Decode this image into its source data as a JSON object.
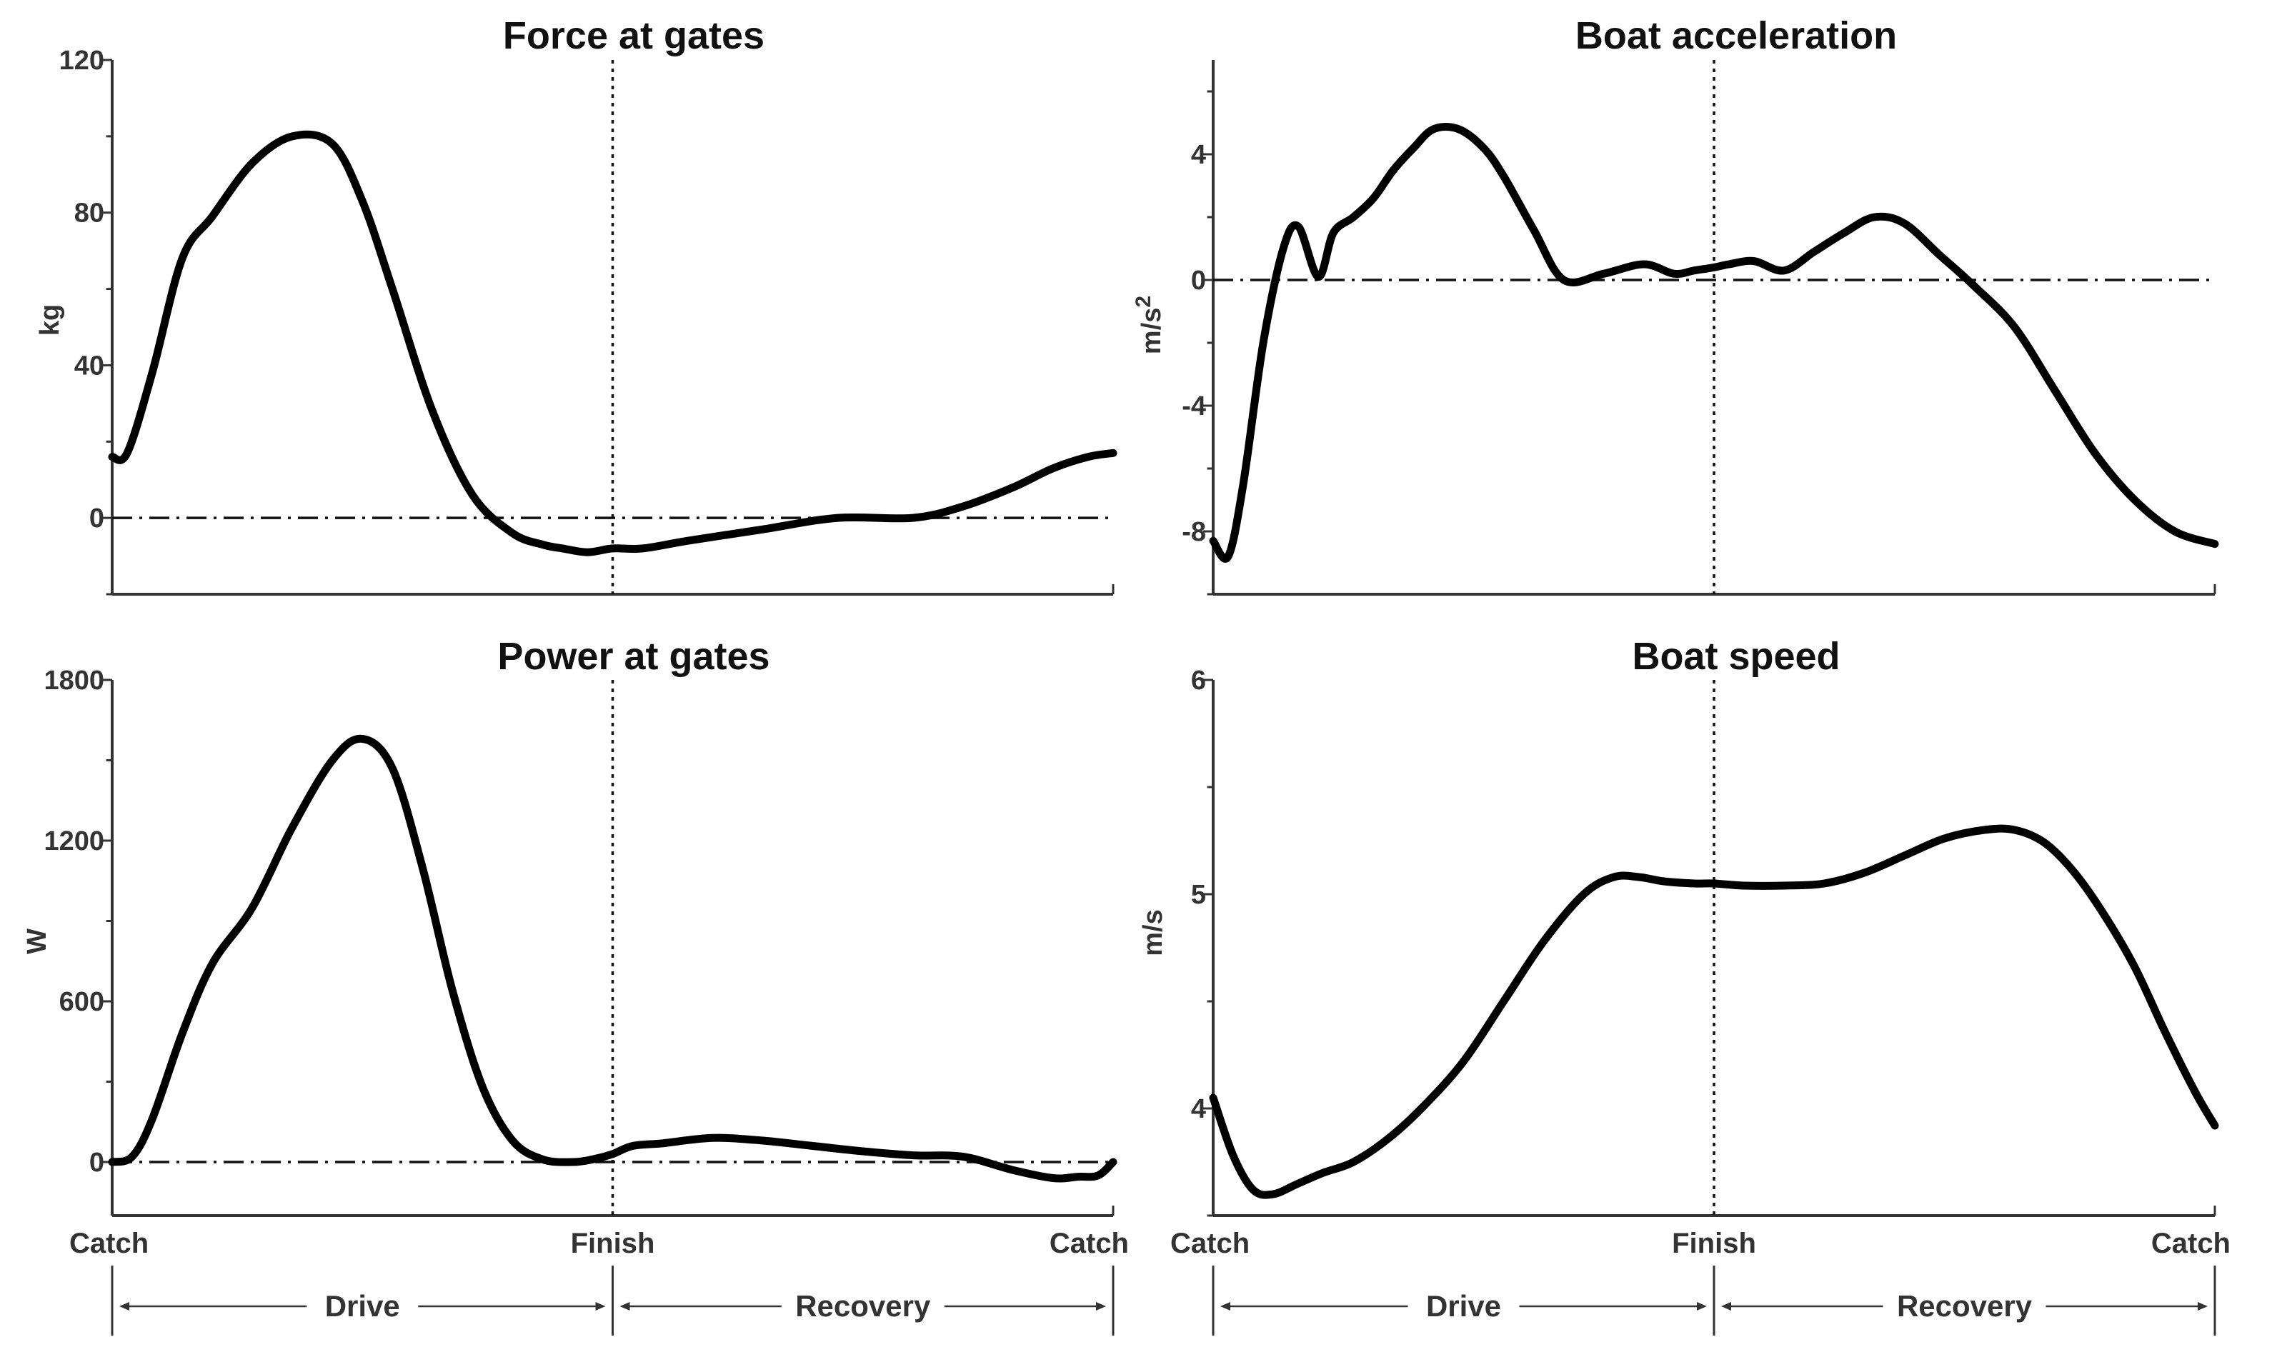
{
  "chart_data": [
    {
      "type": "line",
      "title": "Force at gates",
      "ylabel": "kg",
      "ylim": [
        -20,
        120
      ],
      "yticks": [
        0,
        40,
        80,
        120
      ],
      "xlim": [
        0,
        2
      ],
      "x_finish": 1,
      "series": [
        {
          "name": "Force",
          "x": [
            0,
            0.03,
            0.08,
            0.14,
            0.2,
            0.28,
            0.36,
            0.44,
            0.5,
            0.56,
            0.64,
            0.72,
            0.8,
            0.86,
            0.9,
            0.95,
            1.0,
            1.06,
            1.15,
            1.3,
            1.45,
            1.6,
            1.7,
            1.8,
            1.88,
            1.95,
            2.0
          ],
          "y": [
            16,
            17,
            38,
            68,
            79,
            93,
            100,
            98,
            83,
            60,
            28,
            6,
            -4,
            -7,
            -8,
            -9,
            -8,
            -8,
            -6,
            -3,
            0,
            0,
            3,
            8,
            13,
            16,
            17
          ]
        }
      ]
    },
    {
      "type": "line",
      "title": "Boat acceleration",
      "ylabel": "m/s2",
      "ylim": [
        -10,
        7
      ],
      "yticks": [
        -8,
        -4,
        0,
        4
      ],
      "xlim": [
        0,
        2
      ],
      "x_finish": 1,
      "series": [
        {
          "name": "Acceleration",
          "x": [
            0,
            0.03,
            0.06,
            0.1,
            0.14,
            0.17,
            0.21,
            0.24,
            0.28,
            0.32,
            0.36,
            0.4,
            0.44,
            0.49,
            0.54,
            0.58,
            0.64,
            0.7,
            0.78,
            0.86,
            0.92,
            0.96,
            1.0,
            1.03,
            1.08,
            1.14,
            1.2,
            1.26,
            1.32,
            1.38,
            1.45,
            1.52,
            1.6,
            1.68,
            1.76,
            1.84,
            1.92,
            2.0
          ],
          "y": [
            -8.3,
            -8.8,
            -6.5,
            -2,
            1,
            1.7,
            0.1,
            1.5,
            2,
            2.6,
            3.5,
            4.2,
            4.8,
            4.8,
            4.2,
            3.3,
            1.6,
            0,
            0.2,
            0.5,
            0.2,
            0.3,
            0.4,
            0.5,
            0.6,
            0.3,
            0.9,
            1.5,
            2.0,
            1.8,
            0.8,
            -0.2,
            -1.5,
            -3.5,
            -5.5,
            -7.0,
            -8.0,
            -8.4
          ]
        }
      ]
    },
    {
      "type": "line",
      "title": "Power at gates",
      "ylabel": "W",
      "ylim": [
        -200,
        1800
      ],
      "yticks": [
        0,
        600,
        1200,
        1800
      ],
      "xlim": [
        0,
        2
      ],
      "x_finish": 1,
      "series": [
        {
          "name": "Power",
          "x": [
            0,
            0.04,
            0.08,
            0.14,
            0.2,
            0.28,
            0.36,
            0.44,
            0.5,
            0.56,
            0.62,
            0.68,
            0.74,
            0.8,
            0.86,
            0.92,
            0.96,
            1.0,
            1.04,
            1.1,
            1.2,
            1.3,
            1.4,
            1.5,
            1.6,
            1.7,
            1.8,
            1.88,
            1.93,
            1.97,
            2.0
          ],
          "y": [
            0,
            20,
            160,
            480,
            740,
            950,
            1250,
            1500,
            1580,
            1470,
            1100,
            640,
            280,
            80,
            10,
            0,
            10,
            30,
            60,
            70,
            90,
            80,
            60,
            40,
            25,
            20,
            -30,
            -60,
            -55,
            -50,
            0
          ]
        }
      ]
    },
    {
      "type": "line",
      "title": "Boat speed",
      "ylabel": "m/s",
      "ylim": [
        3.5,
        6
      ],
      "yticks": [
        4,
        5,
        6
      ],
      "xlim": [
        0,
        2
      ],
      "x_finish": 1,
      "series": [
        {
          "name": "Speed",
          "x": [
            0,
            0.04,
            0.08,
            0.12,
            0.17,
            0.22,
            0.28,
            0.35,
            0.42,
            0.5,
            0.58,
            0.66,
            0.74,
            0.8,
            0.85,
            0.9,
            0.96,
            1.0,
            1.06,
            1.14,
            1.22,
            1.3,
            1.38,
            1.46,
            1.54,
            1.6,
            1.66,
            1.72,
            1.78,
            1.84,
            1.9,
            1.96,
            2.0
          ],
          "y": [
            4.05,
            3.78,
            3.62,
            3.6,
            3.65,
            3.7,
            3.75,
            3.86,
            4.01,
            4.22,
            4.5,
            4.78,
            5.0,
            5.08,
            5.08,
            5.06,
            5.05,
            5.05,
            5.04,
            5.04,
            5.05,
            5.1,
            5.18,
            5.26,
            5.3,
            5.3,
            5.24,
            5.1,
            4.9,
            4.66,
            4.36,
            4.08,
            3.92
          ]
        }
      ]
    }
  ],
  "x_axis": {
    "labels": [
      "Catch",
      "Finish",
      "Catch"
    ],
    "phases": [
      "Drive",
      "Recovery"
    ]
  }
}
